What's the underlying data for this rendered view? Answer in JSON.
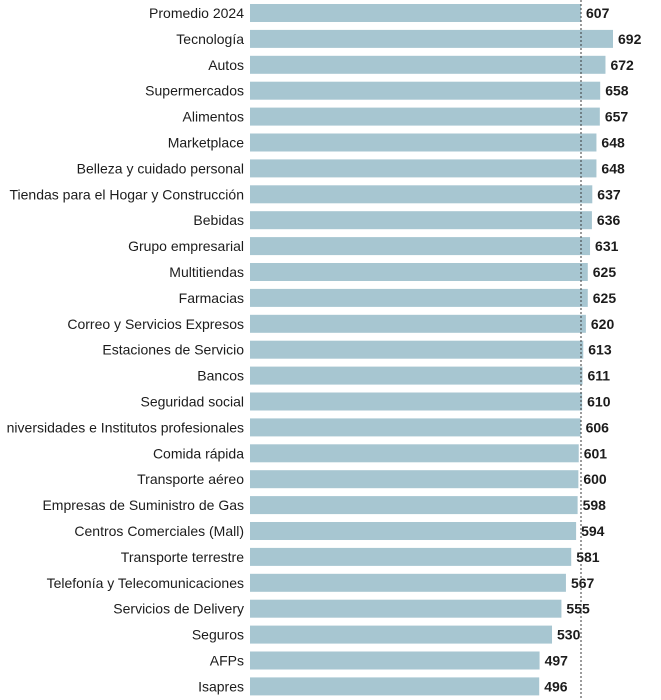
{
  "chart_data": {
    "type": "bar",
    "orientation": "horizontal",
    "categories": [
      "Promedio 2024",
      "Tecnología",
      "Autos",
      "Supermercados",
      "Alimentos",
      "Marketplace",
      "Belleza y cuidado personal",
      "Tiendas para el Hogar y Construcción",
      "Bebidas",
      "Grupo empresarial",
      "Multitiendas",
      "Farmacias",
      "Correo y Servicios Expresos",
      "Estaciones de Servicio",
      "Bancos",
      "Seguridad social",
      "niversidades e Institutos profesionales",
      "Comida rápida",
      "Transporte aéreo",
      "Empresas de Suministro de Gas",
      "Centros Comerciales (Mall)",
      "Transporte terrestre",
      "Telefonía y Telecomunicaciones",
      "Servicios de Delivery",
      "Seguros",
      "AFPs",
      "Isapres"
    ],
    "values": [
      607,
      692,
      672,
      658,
      657,
      648,
      648,
      637,
      636,
      631,
      625,
      625,
      620,
      613,
      611,
      610,
      606,
      601,
      600,
      598,
      594,
      581,
      567,
      555,
      530,
      497,
      496
    ],
    "reference_line": 607,
    "title": "",
    "xlabel": "",
    "ylabel": "",
    "bar_color": "#a7c6d1",
    "grid": false
  }
}
